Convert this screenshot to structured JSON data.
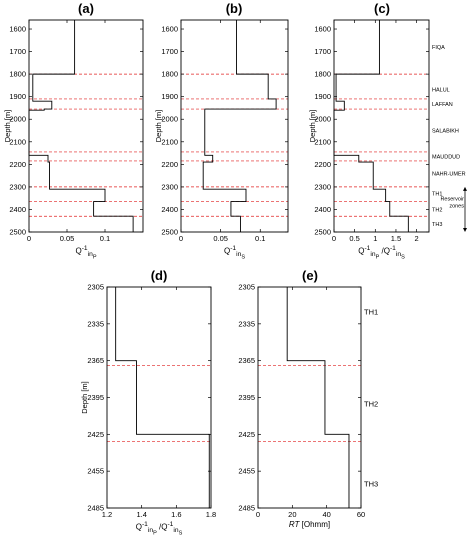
{
  "chart_data": [
    {
      "panel": "(a)",
      "type": "line",
      "ylabel": "Depth [m]",
      "xlabel": "Q_inP^-1",
      "xlabel_html": "Q<sup>-1</sup><sub>in<sub>P</sub></sub>",
      "xlim": [
        0,
        0.15
      ],
      "ylim": [
        2500,
        1560
      ],
      "xticks": [
        0,
        0.05,
        0.1
      ],
      "xticklabels": [
        "0",
        "0.05",
        "0.1"
      ],
      "yticks": [
        1600,
        1700,
        1800,
        1900,
        2000,
        2100,
        2200,
        2300,
        2400,
        2500
      ],
      "yticklabels": [
        "1600",
        "1700",
        "1800",
        "1900",
        "2000",
        "2100",
        "2200",
        "2300",
        "2400",
        "2500"
      ],
      "series": [
        {
          "step_profile": [
            {
              "top": 1560,
              "bottom": 1800,
              "value": 0.06
            },
            {
              "top": 1800,
              "bottom": 1920,
              "value": 0.005
            },
            {
              "top": 1920,
              "bottom": 1955,
              "value": 0.03
            },
            {
              "top": 1955,
              "bottom": 1960,
              "value": 0.02
            },
            {
              "top": 1960,
              "bottom": 2160,
              "value": 0.0
            },
            {
              "top": 2160,
              "bottom": 2190,
              "value": 0.025
            },
            {
              "top": 2190,
              "bottom": 2310,
              "value": 0.027
            },
            {
              "top": 2310,
              "bottom": 2365,
              "value": 0.1
            },
            {
              "top": 2365,
              "bottom": 2430,
              "value": 0.085
            },
            {
              "top": 2430,
              "bottom": 2500,
              "value": 0.137
            }
          ]
        }
      ],
      "boundaries": [
        1550,
        1800,
        1910,
        1955,
        2145,
        2185,
        2300,
        2365,
        2430
      ],
      "grid": false
    },
    {
      "panel": "(b)",
      "type": "line",
      "ylabel": "Depth [m]",
      "xlabel": "Q_inS^-1",
      "xlabel_html": "Q<sup>-1</sup><sub>in<sub>S</sub></sub>",
      "xlim": [
        0,
        0.135
      ],
      "ylim": [
        2500,
        1560
      ],
      "xticks": [
        0,
        0.05,
        0.1
      ],
      "xticklabels": [
        "0",
        "0.05",
        "0.1"
      ],
      "yticks": [
        1600,
        1700,
        1800,
        1900,
        2000,
        2100,
        2200,
        2300,
        2400,
        2500
      ],
      "yticklabels": [
        "1600",
        "1700",
        "1800",
        "1900",
        "2000",
        "2100",
        "2200",
        "2300",
        "2400",
        "2500"
      ],
      "series": [
        {
          "step_profile": [
            {
              "top": 1560,
              "bottom": 1800,
              "value": 0.07
            },
            {
              "top": 1800,
              "bottom": 1910,
              "value": 0.11
            },
            {
              "top": 1910,
              "bottom": 1955,
              "value": 0.12
            },
            {
              "top": 1955,
              "bottom": 2160,
              "value": 0.03
            },
            {
              "top": 2160,
              "bottom": 2190,
              "value": 0.04
            },
            {
              "top": 2190,
              "bottom": 2310,
              "value": 0.028
            },
            {
              "top": 2310,
              "bottom": 2365,
              "value": 0.082
            },
            {
              "top": 2365,
              "bottom": 2430,
              "value": 0.063
            },
            {
              "top": 2430,
              "bottom": 2500,
              "value": 0.075
            }
          ]
        }
      ],
      "boundaries": [
        1550,
        1800,
        1910,
        1955,
        2145,
        2185,
        2300,
        2365,
        2430
      ],
      "grid": false
    },
    {
      "panel": "(c)",
      "type": "line",
      "ylabel": "Depth [m]",
      "xlabel": "Q_inP^-1 / Q_inS^-1",
      "xlabel_html": "Q<sup>-1</sup><sub>in<sub>P</sub></sub> /Q<sup>-1</sup><sub>in<sub>S</sub></sub>",
      "xlim": [
        0,
        2.3
      ],
      "ylim": [
        2500,
        1560
      ],
      "xticks": [
        0,
        0.5,
        1,
        1.5,
        2
      ],
      "xticklabels": [
        "0",
        "0.5",
        "1",
        "1.5",
        "2"
      ],
      "yticks": [
        1600,
        1700,
        1800,
        1900,
        2000,
        2100,
        2200,
        2300,
        2400,
        2500
      ],
      "yticklabels": [
        "1600",
        "1700",
        "1800",
        "1900",
        "2000",
        "2100",
        "2200",
        "2300",
        "2400",
        "2500"
      ],
      "series": [
        {
          "step_profile": [
            {
              "top": 1560,
              "bottom": 1800,
              "value": 1.1
            },
            {
              "top": 1800,
              "bottom": 1920,
              "value": 0.05
            },
            {
              "top": 1920,
              "bottom": 1960,
              "value": 0.25
            },
            {
              "top": 1960,
              "bottom": 2160,
              "value": 0.0
            },
            {
              "top": 2160,
              "bottom": 2190,
              "value": 0.6
            },
            {
              "top": 2190,
              "bottom": 2310,
              "value": 0.95
            },
            {
              "top": 2310,
              "bottom": 2365,
              "value": 1.25
            },
            {
              "top": 2365,
              "bottom": 2430,
              "value": 1.35
            },
            {
              "top": 2430,
              "bottom": 2500,
              "value": 1.8
            }
          ]
        }
      ],
      "boundaries": [
        1550,
        1800,
        1910,
        1955,
        2145,
        2185,
        2300,
        2365,
        2430
      ],
      "formations": [
        {
          "name": "FIQA",
          "depth": 1680
        },
        {
          "name": "HALUL",
          "depth": 1868
        },
        {
          "name": "LAFFAN",
          "depth": 1932
        },
        {
          "name": "SALABIKH",
          "depth": 2050
        },
        {
          "name": "MAUDDUD",
          "depth": 2165
        },
        {
          "name": "NAHR-UMER",
          "depth": 2240
        },
        {
          "name": "TH1",
          "depth": 2330
        },
        {
          "name": "TH2",
          "depth": 2400
        },
        {
          "name": "TH3",
          "depth": 2465
        }
      ],
      "reservoir_label": [
        "Reservoir",
        "zones"
      ],
      "reservoir_range": [
        2300,
        2500
      ],
      "grid": false
    },
    {
      "panel": "(d)",
      "type": "line",
      "ylabel": "Depth [m]",
      "xlabel": "Q_inP^-1 / Q_inS^-1",
      "xlabel_html": "Q<sup>-1</sup><sub>in<sub>P</sub></sub> /Q<sup>-1</sup><sub>in<sub>S</sub></sub>",
      "xlim": [
        1.2,
        1.8
      ],
      "ylim": [
        2485,
        2305
      ],
      "xticks": [
        1.2,
        1.4,
        1.6,
        1.8
      ],
      "xticklabels": [
        "1.2",
        "1.4",
        "1.6",
        "1.8"
      ],
      "yticks": [
        2305,
        2335,
        2365,
        2395,
        2425,
        2455,
        2485
      ],
      "yticklabels": [
        "2305",
        "2335",
        "2365",
        "2395",
        "2425",
        "2455",
        "2485"
      ],
      "series": [
        {
          "step_profile": [
            {
              "top": 2305,
              "bottom": 2365,
              "value": 1.25
            },
            {
              "top": 2365,
              "bottom": 2425,
              "value": 1.37
            },
            {
              "top": 2425,
              "bottom": 2485,
              "value": 1.79
            }
          ]
        }
      ],
      "boundaries": [
        2369,
        2431
      ],
      "grid": false
    },
    {
      "panel": "(e)",
      "type": "line",
      "ylabel": "",
      "xlabel": "RT [Ohmm]",
      "xlabel_html": "<i>RT</i> [Ohmm]",
      "xlim": [
        0,
        60
      ],
      "ylim": [
        2485,
        2305
      ],
      "xticks": [
        0,
        20,
        40,
        60
      ],
      "xticklabels": [
        "0",
        "20",
        "40",
        "60"
      ],
      "yticks": [
        2305,
        2335,
        2365,
        2395,
        2425,
        2455,
        2485
      ],
      "yticklabels": [
        "2305",
        "2335",
        "2365",
        "2395",
        "2425",
        "2455",
        "2485"
      ],
      "series": [
        {
          "step_profile": [
            {
              "top": 2305,
              "bottom": 2365,
              "value": 17
            },
            {
              "top": 2365,
              "bottom": 2425,
              "value": 39
            },
            {
              "top": 2425,
              "bottom": 2485,
              "value": 53
            }
          ]
        }
      ],
      "boundaries": [
        2369,
        2431
      ],
      "zone_labels": [
        {
          "name": "TH1",
          "depth": 2325
        },
        {
          "name": "TH2",
          "depth": 2400
        },
        {
          "name": "TH3",
          "depth": 2465
        }
      ],
      "grid": false
    }
  ],
  "colors": {
    "profile": "#000000",
    "boundary": "#e02020",
    "frame": "#000000"
  }
}
